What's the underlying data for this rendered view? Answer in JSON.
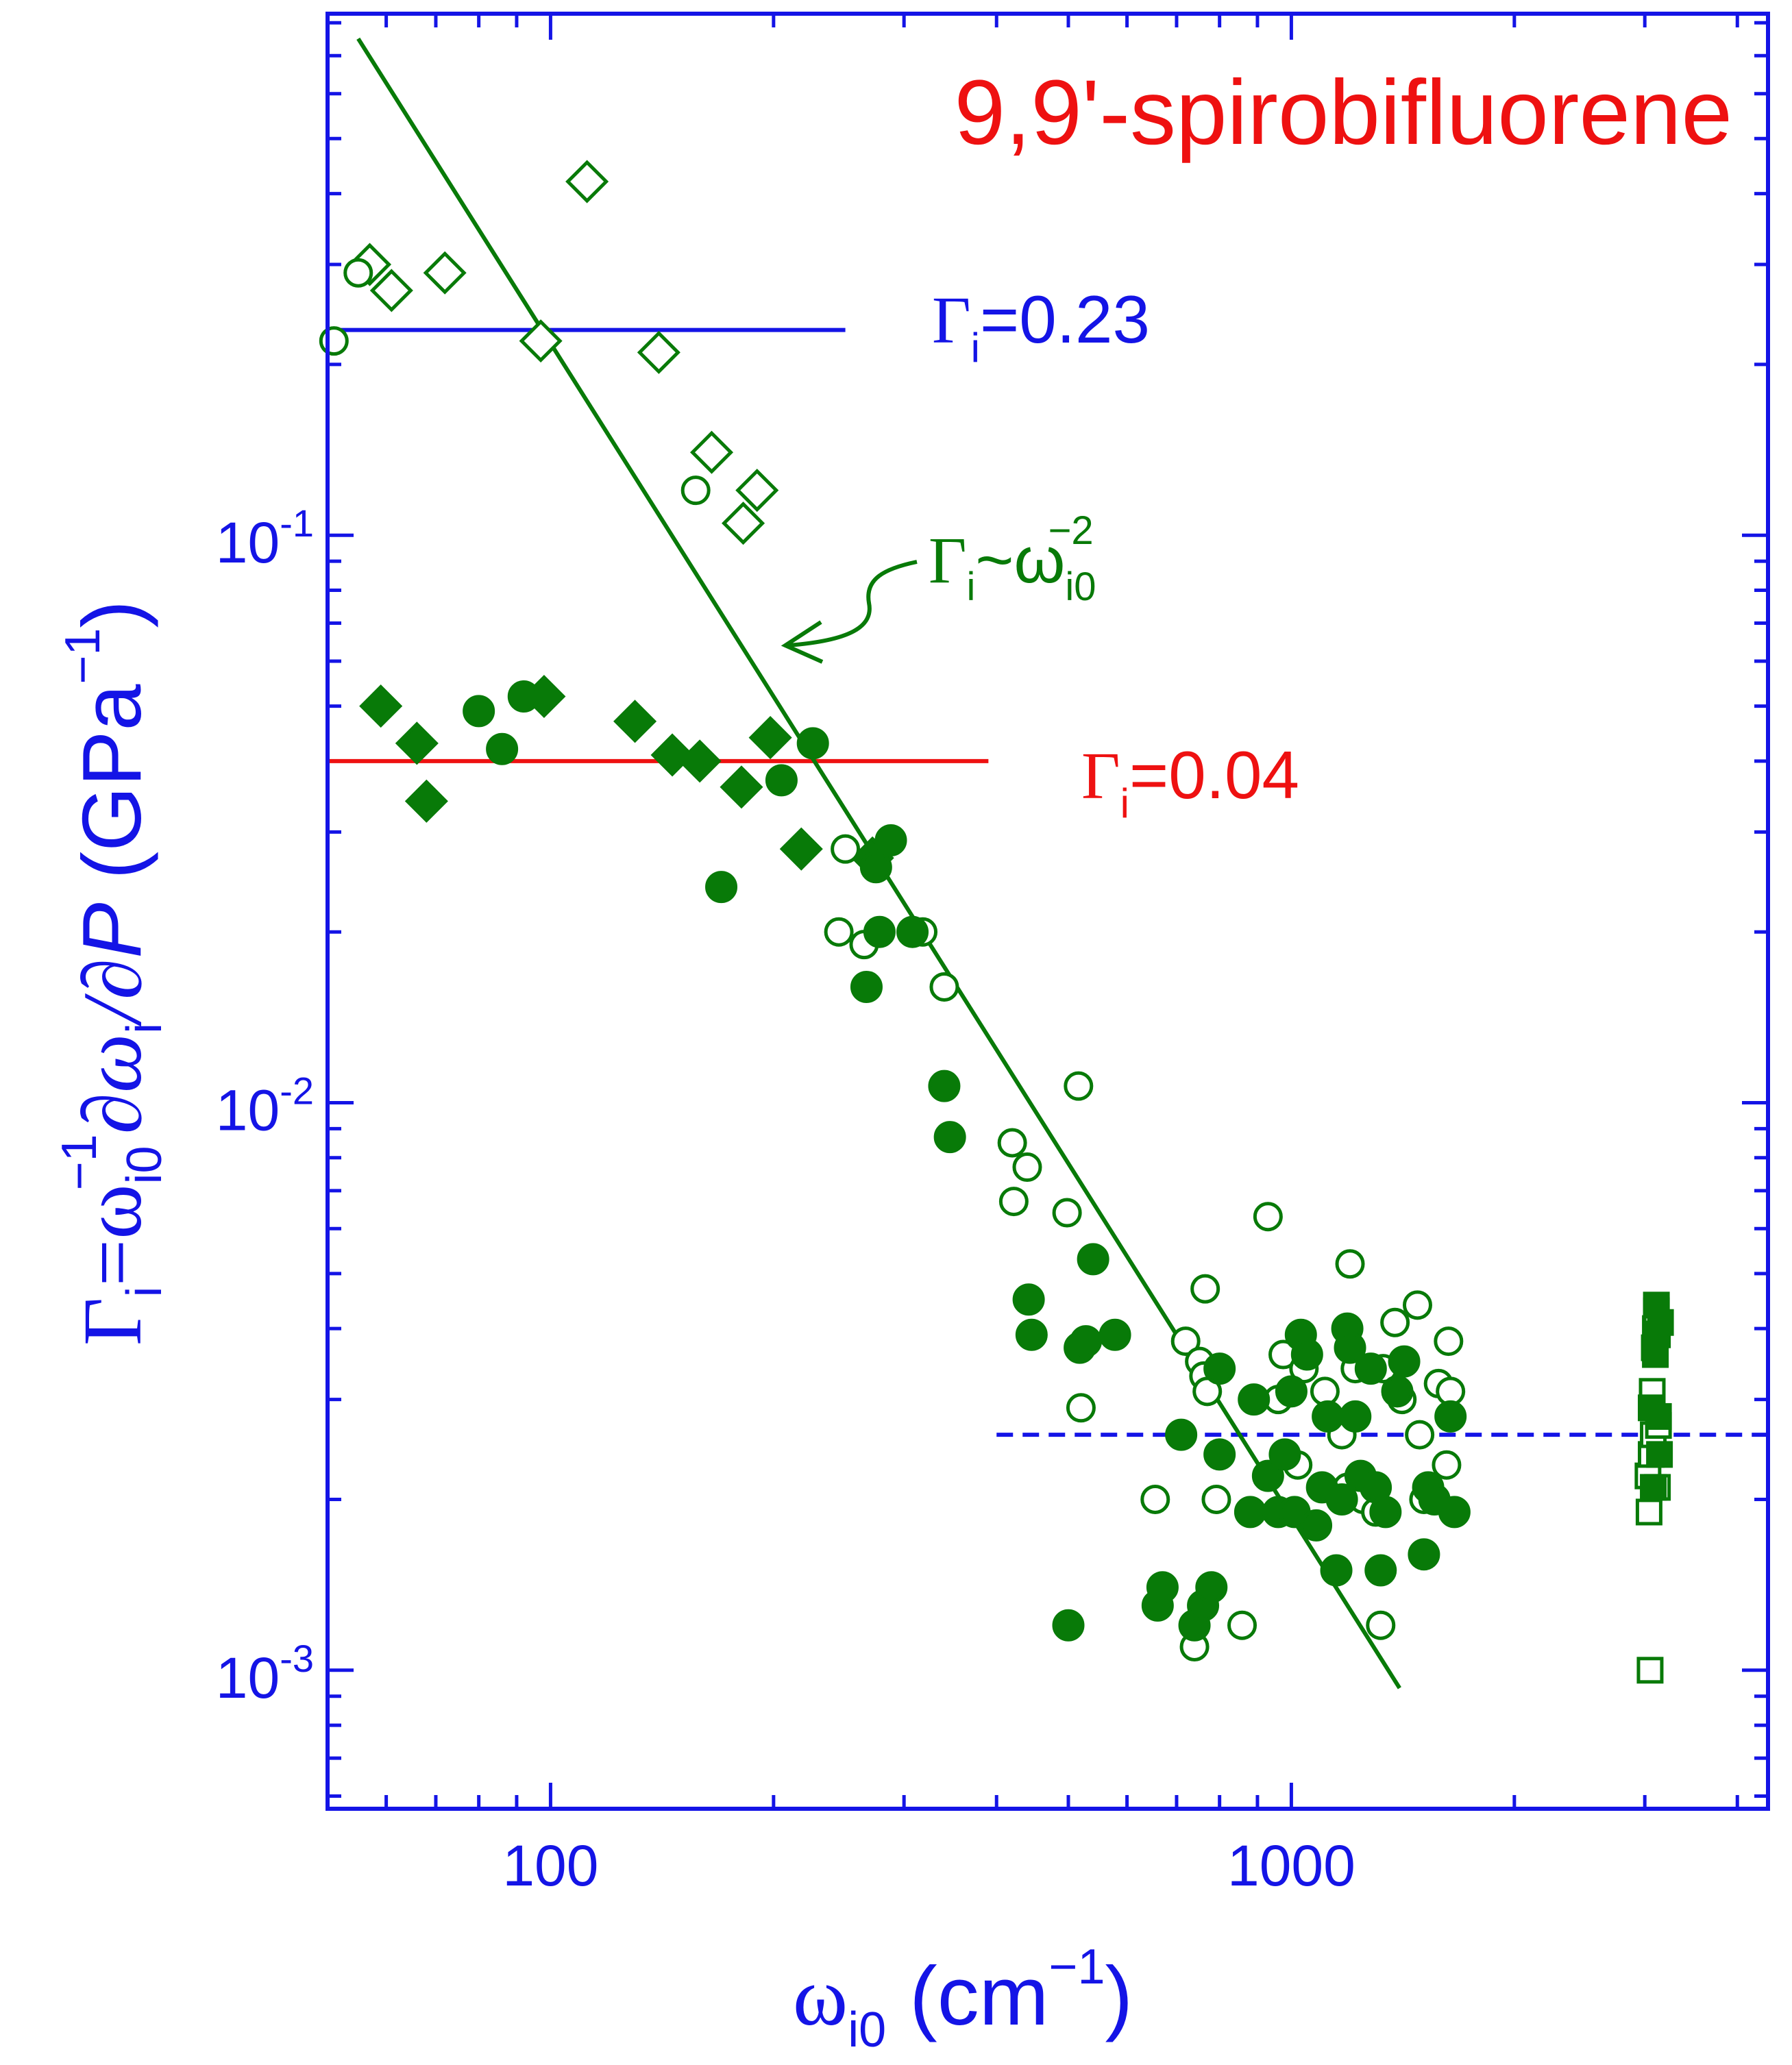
{
  "chart_data": {
    "type": "scatter",
    "title": "9,9'-spirobifluorene",
    "xlabel": {
      "main": "ω",
      "sub": "i0",
      "unit_open": " (cm",
      "unit_sup": "−1",
      "unit_close": ")"
    },
    "ylabel": {
      "g": "Γ",
      "g_sub": "i",
      "eq": "=ω",
      "eq_sub": "i0",
      "eq_sup": "−1",
      "d": "∂ω",
      "d_sub": "i",
      "slash": "/∂",
      "p": "P",
      "unit": " (GPa",
      "unit_sup": "−1",
      "unit_close": ")"
    },
    "x_scale": "log",
    "y_scale": "log",
    "xlim": [
      50,
      4400
    ],
    "ylim": [
      0.00057,
      0.83
    ],
    "x_ticks": [
      {
        "value": 100,
        "label": "100"
      },
      {
        "value": 1000,
        "label": "1000"
      }
    ],
    "y_ticks": [
      {
        "value": 0.001,
        "base": "10",
        "exp": "-3"
      },
      {
        "value": 0.01,
        "base": "10",
        "exp": "-2"
      },
      {
        "value": 0.1,
        "base": "10",
        "exp": "-1"
      }
    ],
    "colors": {
      "axis": "#1414e6",
      "data": "#087a08",
      "title": "#ee1111",
      "line_high": "#1414e6",
      "line_low": "#ee1111"
    },
    "reference_lines": [
      {
        "name": "high",
        "y": 0.23,
        "x_range": [
          50,
          250
        ],
        "style": "solid",
        "label": "Γ",
        "label_sub": "i",
        "label_value": "=0.23"
      },
      {
        "name": "low",
        "y": 0.04,
        "x_range": [
          50,
          390
        ],
        "style": "solid",
        "label": "Γ",
        "label_sub": "i",
        "label_value": "=0.04"
      },
      {
        "name": "plateau",
        "y": 0.0026,
        "x_range": [
          400,
          4400
        ],
        "style": "dashed"
      }
    ],
    "fit_line": {
      "label": "Γ",
      "label_sub": "i",
      "label_mid": "~ω",
      "label_sub2": "i0",
      "label_sup": "−2",
      "points": [
        [
          55,
          0.75
        ],
        [
          1400,
          0.00093
        ]
      ]
    },
    "series": [
      {
        "name": "open diamonds",
        "marker": "diamond",
        "filled": false,
        "points": [
          [
            57,
            0.3
          ],
          [
            61,
            0.27
          ],
          [
            72,
            0.29
          ],
          [
            97,
            0.22
          ],
          [
            112,
            0.42
          ],
          [
            140,
            0.21
          ],
          [
            165,
            0.14
          ],
          [
            182,
            0.105
          ],
          [
            190,
            0.12
          ]
        ]
      },
      {
        "name": "filled diamonds",
        "marker": "diamond",
        "filled": true,
        "points": [
          [
            59,
            0.05
          ],
          [
            66,
            0.043
          ],
          [
            68,
            0.034
          ],
          [
            98,
            0.052
          ],
          [
            130,
            0.047
          ],
          [
            146,
            0.041
          ],
          [
            159,
            0.04
          ],
          [
            181,
            0.036
          ],
          [
            198,
            0.044
          ],
          [
            218,
            0.028
          ],
          [
            272,
            0.027
          ]
        ]
      },
      {
        "name": "open circles",
        "marker": "circle",
        "filled": false,
        "points": [
          [
            51,
            0.22
          ],
          [
            55,
            0.29
          ],
          [
            157,
            0.12
          ],
          [
            250,
            0.028
          ],
          [
            245,
            0.02
          ],
          [
            265,
            0.019
          ],
          [
            318,
            0.02
          ],
          [
            340,
            0.016
          ],
          [
            420,
            0.0085
          ],
          [
            422,
            0.0067
          ],
          [
            440,
            0.0077
          ],
          [
            498,
            0.0064
          ],
          [
            516,
            0.0107
          ],
          [
            520,
            0.0029
          ],
          [
            655,
            0.002
          ],
          [
            720,
            0.0038
          ],
          [
            752,
            0.0035
          ],
          [
            762,
            0.0033
          ],
          [
            770,
            0.0031
          ],
          [
            765,
            0.0047
          ],
          [
            792,
            0.002
          ],
          [
            740,
            0.0011
          ],
          [
            858,
            0.0012
          ],
          [
            930,
            0.0063
          ],
          [
            960,
            0.003
          ],
          [
            975,
            0.0036
          ],
          [
            1020,
            0.0023
          ],
          [
            1040,
            0.0034
          ],
          [
            1110,
            0.0031
          ],
          [
            1170,
            0.0026
          ],
          [
            1190,
            0.0021
          ],
          [
            1200,
            0.0052
          ],
          [
            1220,
            0.0034
          ],
          [
            1250,
            0.002
          ],
          [
            1300,
            0.0019
          ],
          [
            1320,
            0.0012
          ],
          [
            1330,
            0.0034
          ],
          [
            1380,
            0.0041
          ],
          [
            1410,
            0.003
          ],
          [
            1480,
            0.0044
          ],
          [
            1490,
            0.0026
          ],
          [
            1510,
            0.002
          ],
          [
            1580,
            0.0032
          ],
          [
            1620,
            0.0023
          ],
          [
            1630,
            0.0038
          ],
          [
            1640,
            0.0031
          ]
        ]
      },
      {
        "name": "filled circles",
        "marker": "circle",
        "filled": true,
        "points": [
          [
            80,
            0.049
          ],
          [
            86,
            0.042
          ],
          [
            92,
            0.052
          ],
          [
            170,
            0.024
          ],
          [
            205,
            0.037
          ],
          [
            226,
            0.043
          ],
          [
            267,
            0.016
          ],
          [
            275,
            0.026
          ],
          [
            278,
            0.02
          ],
          [
            288,
            0.029
          ],
          [
            308,
            0.02
          ],
          [
            340,
            0.0107
          ],
          [
            346,
            0.0087
          ],
          [
            442,
            0.0045
          ],
          [
            446,
            0.0039
          ],
          [
            500,
            0.0012
          ],
          [
            518,
            0.0037
          ],
          [
            528,
            0.0038
          ],
          [
            540,
            0.0053
          ],
          [
            578,
            0.0039
          ],
          [
            660,
            0.0013
          ],
          [
            670,
            0.0014
          ],
          [
            710,
            0.0026
          ],
          [
            740,
            0.0012
          ],
          [
            760,
            0.0013
          ],
          [
            780,
            0.0014
          ],
          [
            800,
            0.0024
          ],
          [
            800,
            0.0034
          ],
          [
            880,
            0.0019
          ],
          [
            890,
            0.003
          ],
          [
            930,
            0.0022
          ],
          [
            960,
            0.0019
          ],
          [
            980,
            0.0024
          ],
          [
            1000,
            0.0031
          ],
          [
            1010,
            0.0019
          ],
          [
            1030,
            0.0039
          ],
          [
            1050,
            0.0036
          ],
          [
            1080,
            0.0018
          ],
          [
            1100,
            0.0021
          ],
          [
            1120,
            0.0028
          ],
          [
            1150,
            0.0015
          ],
          [
            1170,
            0.002
          ],
          [
            1190,
            0.004
          ],
          [
            1200,
            0.0037
          ],
          [
            1220,
            0.0028
          ],
          [
            1240,
            0.0022
          ],
          [
            1280,
            0.0034
          ],
          [
            1300,
            0.0021
          ],
          [
            1320,
            0.0015
          ],
          [
            1340,
            0.0019
          ],
          [
            1390,
            0.0031
          ],
          [
            1420,
            0.0035
          ],
          [
            1510,
            0.0016
          ],
          [
            1530,
            0.0021
          ],
          [
            1560,
            0.002
          ],
          [
            1640,
            0.0028
          ],
          [
            1660,
            0.0019
          ]
        ]
      },
      {
        "name": "open squares",
        "marker": "square",
        "filled": false,
        "points": [
          [
            3030,
            0.0022
          ],
          [
            3040,
            0.0019
          ],
          [
            3050,
            0.001
          ],
          [
            3060,
            0.0024
          ],
          [
            3070,
            0.0031
          ],
          [
            3080,
            0.0026
          ],
          [
            3090,
            0.0037
          ],
          [
            3100,
            0.004
          ],
          [
            3110,
            0.0043
          ],
          [
            3120,
            0.0021
          ],
          [
            3130,
            0.0027
          ]
        ]
      },
      {
        "name": "filled squares",
        "marker": "square",
        "filled": true,
        "points": [
          [
            3060,
            0.0029
          ],
          [
            3080,
            0.0021
          ],
          [
            3100,
            0.0036
          ],
          [
            3110,
            0.0044
          ],
          [
            3120,
            0.0039
          ],
          [
            3130,
            0.0028
          ],
          [
            3140,
            0.0024
          ],
          [
            3150,
            0.0041
          ]
        ]
      }
    ]
  }
}
